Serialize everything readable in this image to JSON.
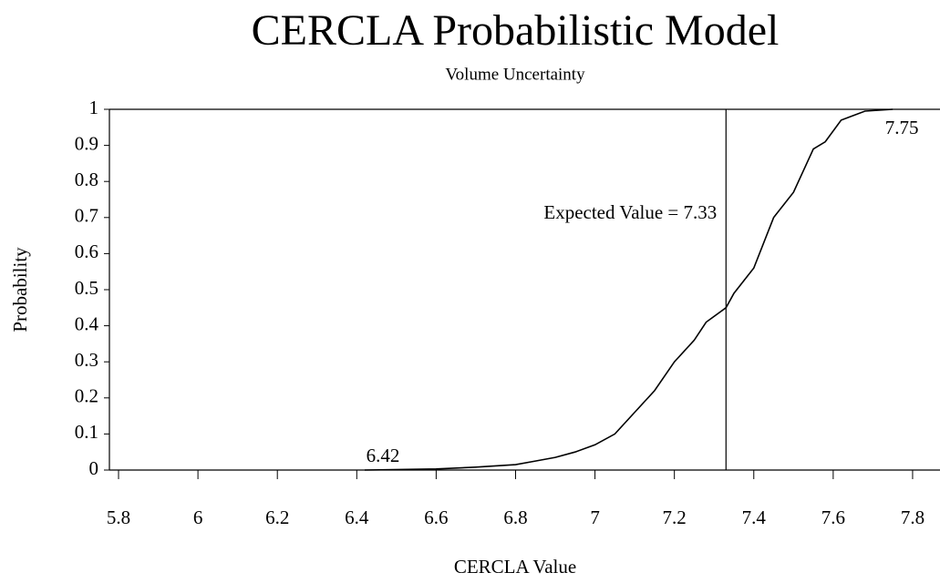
{
  "chart_data": {
    "type": "line",
    "title": "CERCLA Probabilistic Model",
    "subtitle": "Volume Uncertainty",
    "x_label": "CERCLA Value",
    "y_label": "Probability",
    "x": [
      6.42,
      6.6,
      6.7,
      6.8,
      6.85,
      6.9,
      6.95,
      7.0,
      7.05,
      7.1,
      7.15,
      7.2,
      7.25,
      7.28,
      7.33,
      7.35,
      7.4,
      7.45,
      7.5,
      7.55,
      7.58,
      7.62,
      7.68,
      7.75
    ],
    "series": [
      {
        "color": "#000000",
        "values": [
          0,
          0.003,
          0.008,
          0.015,
          0.025,
          0.035,
          0.05,
          0.07,
          0.1,
          0.16,
          0.22,
          0.3,
          0.36,
          0.41,
          0.45,
          0.49,
          0.56,
          0.7,
          0.77,
          0.89,
          0.91,
          0.97,
          0.995,
          1
        ]
      }
    ],
    "expected_value": 7.33,
    "annotations": [
      "Expected Value = 7.33",
      "6.42",
      "7.75"
    ],
    "xlim": [
      5.777,
      7.869
    ],
    "ylim": [
      0,
      1
    ],
    "xticks": [
      5.8,
      6,
      6.2,
      6.4,
      6.6,
      6.8,
      7,
      7.2,
      7.4,
      7.6,
      7.8
    ],
    "yticks": [
      0,
      0.1,
      0.2,
      0.3,
      0.4,
      0.5,
      0.6,
      0.7,
      0.8,
      0.9,
      1
    ],
    "grid": false
  }
}
